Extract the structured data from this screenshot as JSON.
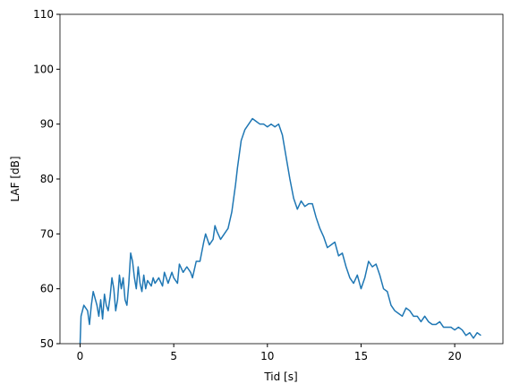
{
  "chart_data": {
    "type": "line",
    "xlabel": "Tid [s]",
    "ylabel": "LAF [dB]",
    "x": [
      0,
      0.05,
      0.2,
      0.4,
      0.5,
      0.6,
      0.7,
      0.9,
      1.0,
      1.1,
      1.2,
      1.3,
      1.4,
      1.5,
      1.6,
      1.7,
      1.8,
      1.9,
      2.0,
      2.1,
      2.2,
      2.3,
      2.4,
      2.5,
      2.6,
      2.7,
      2.8,
      2.9,
      3.0,
      3.1,
      3.2,
      3.3,
      3.4,
      3.5,
      3.6,
      3.8,
      3.9,
      4.0,
      4.2,
      4.4,
      4.5,
      4.7,
      4.9,
      5.0,
      5.2,
      5.3,
      5.5,
      5.7,
      5.9,
      6.0,
      6.2,
      6.4,
      6.6,
      6.7,
      6.9,
      7.1,
      7.2,
      7.3,
      7.5,
      7.7,
      7.9,
      8.1,
      8.3,
      8.4,
      8.6,
      8.8,
      9.0,
      9.2,
      9.4,
      9.6,
      9.8,
      10.0,
      10.2,
      10.4,
      10.6,
      10.8,
      11.0,
      11.2,
      11.4,
      11.6,
      11.8,
      12.0,
      12.2,
      12.4,
      12.6,
      12.8,
      13.0,
      13.2,
      13.4,
      13.6,
      13.8,
      14.0,
      14.2,
      14.4,
      14.6,
      14.8,
      15.0,
      15.2,
      15.4,
      15.6,
      15.8,
      16.0,
      16.2,
      16.4,
      16.6,
      16.8,
      17.0,
      17.2,
      17.4,
      17.6,
      17.8,
      18.0,
      18.2,
      18.4,
      18.6,
      18.8,
      19.0,
      19.2,
      19.4,
      19.6,
      19.8,
      20.0,
      20.2,
      20.4,
      20.6,
      20.8,
      21.0,
      21.2,
      21.4
    ],
    "series": [
      {
        "color": "#1f77b4",
        "values": [
          50,
          55,
          57,
          56,
          53.5,
          57,
          59.5,
          57,
          55,
          58,
          54.5,
          59,
          57,
          56,
          58.5,
          62,
          60,
          56,
          58,
          62.5,
          60,
          62,
          58,
          57,
          61,
          66.5,
          65,
          62,
          60,
          64,
          61,
          59.5,
          62.5,
          60,
          61.5,
          60.5,
          62,
          61,
          62,
          60.5,
          63,
          61,
          63,
          62,
          61,
          64.5,
          63,
          64,
          63,
          62,
          65,
          65,
          68.5,
          70,
          68,
          69,
          71.5,
          70.5,
          69,
          70,
          71,
          74,
          79,
          82,
          87,
          89,
          90,
          91,
          90.5,
          90,
          90,
          89.5,
          90,
          89.5,
          90,
          88,
          84,
          80,
          76.5,
          74.5,
          76,
          75,
          75.5,
          75.5,
          73,
          71,
          69.5,
          67.5,
          68,
          68.5,
          66,
          66.5,
          64,
          62,
          61,
          62.5,
          60,
          62,
          65,
          64,
          64.5,
          62.5,
          60,
          59.5,
          57,
          56,
          55.5,
          55,
          56.5,
          56,
          55,
          55,
          54,
          55,
          54,
          53.5,
          53.5,
          54,
          53,
          53,
          53,
          52.5,
          53,
          52.5,
          51.5,
          52,
          51,
          52,
          51.5
        ]
      }
    ],
    "xlim": [
      -1.075,
      22.575
    ],
    "xticks": [
      0,
      5,
      10,
      15,
      20
    ],
    "ylim": [
      50,
      110
    ],
    "yticks": [
      50,
      60,
      70,
      80,
      90,
      100,
      110
    ]
  }
}
